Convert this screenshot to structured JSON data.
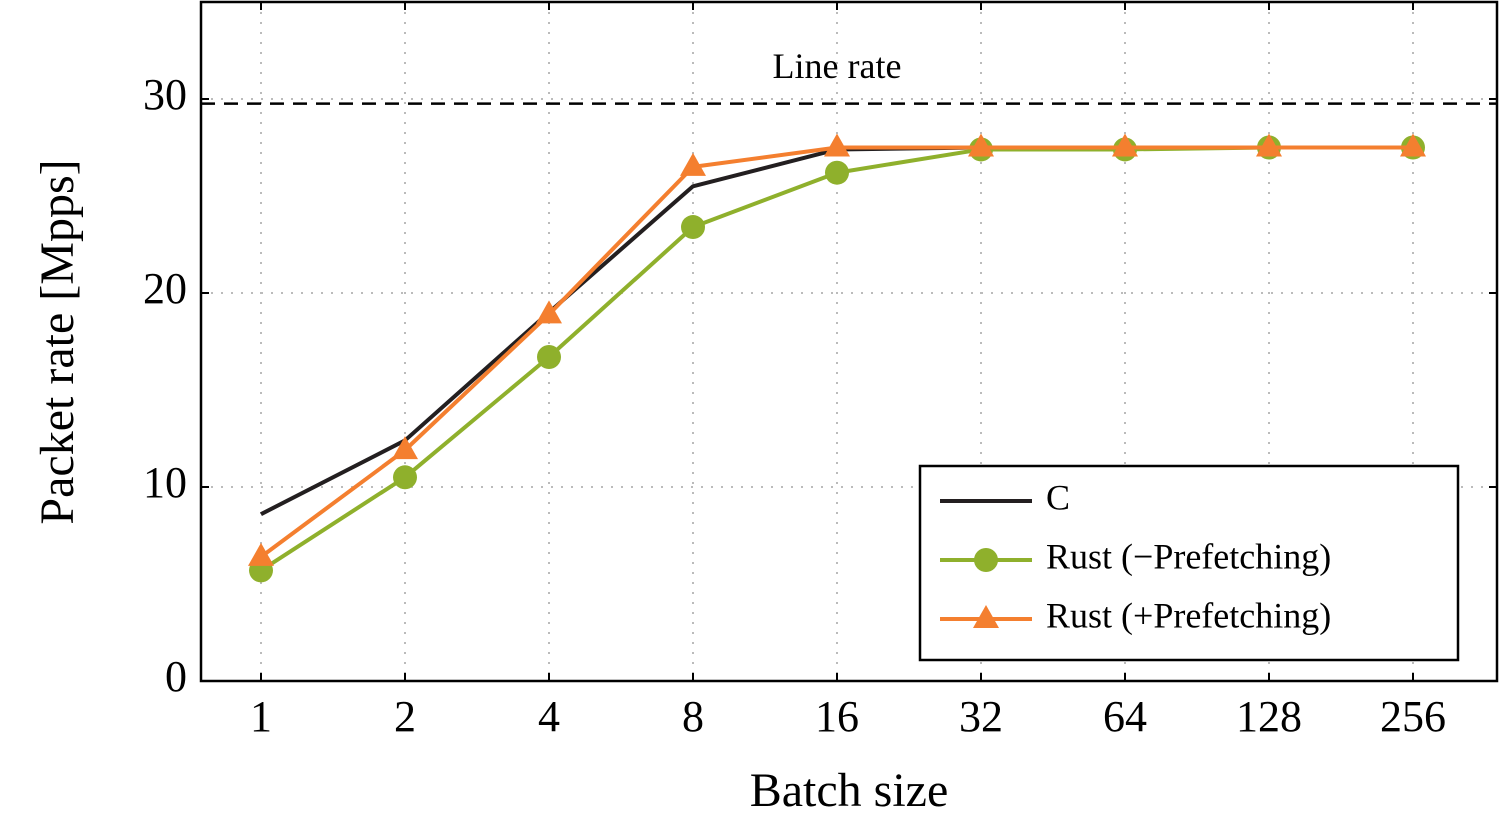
{
  "chart_data": {
    "type": "line",
    "xlabel": "Batch size",
    "ylabel": "Packet rate [Mpps]",
    "categories": [
      "1",
      "2",
      "4",
      "8",
      "16",
      "32",
      "64",
      "128",
      "256"
    ],
    "series": [
      {
        "name": "C",
        "color": "#231f20",
        "marker": null,
        "values": [
          8.6,
          12.4,
          19.0,
          25.5,
          27.4,
          27.5,
          27.5,
          27.5,
          27.5
        ]
      },
      {
        "name": "Rust (−Prefetching)",
        "color": "#8fb02c",
        "marker": "circle",
        "values": [
          5.7,
          10.5,
          16.7,
          23.4,
          26.2,
          27.4,
          27.4,
          27.5,
          27.5
        ]
      },
      {
        "name": "Rust (+Prefetching)",
        "color": "#f47f2f",
        "marker": "triangle",
        "values": [
          6.4,
          11.9,
          18.9,
          26.5,
          27.5,
          27.5,
          27.5,
          27.5,
          27.5
        ]
      }
    ],
    "hline": {
      "label": "Line rate",
      "value": 29.76
    },
    "ylim": [
      0,
      35
    ],
    "yticks": [
      0,
      10,
      20,
      30
    ],
    "grid": true,
    "legend": "lower right"
  }
}
